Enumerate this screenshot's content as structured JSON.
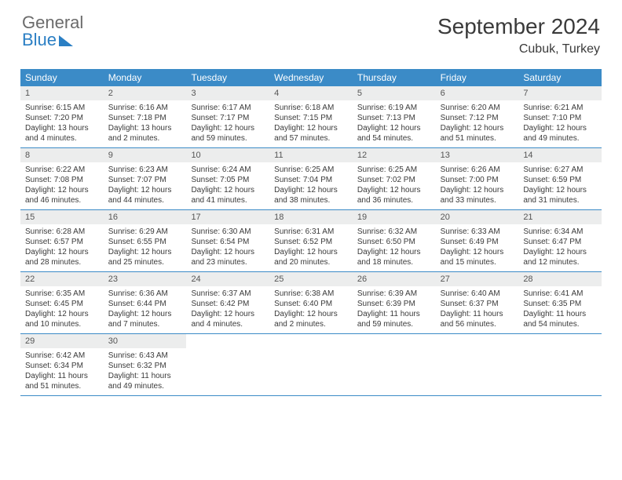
{
  "logo": {
    "line1": "General",
    "line2": "Blue"
  },
  "title": "September 2024",
  "location": "Cubuk, Turkey",
  "colors": {
    "header_bg": "#3b8bc7",
    "header_text": "#ffffff",
    "daynum_bg": "#eceded",
    "text": "#3a3a3a",
    "logo_gray": "#6b6b6b",
    "logo_blue": "#2b7fc4",
    "border": "#3b8bc7"
  },
  "dayNames": [
    "Sunday",
    "Monday",
    "Tuesday",
    "Wednesday",
    "Thursday",
    "Friday",
    "Saturday"
  ],
  "weeks": [
    [
      {
        "n": "1",
        "sr": "Sunrise: 6:15 AM",
        "ss": "Sunset: 7:20 PM",
        "d1": "Daylight: 13 hours",
        "d2": "and 4 minutes."
      },
      {
        "n": "2",
        "sr": "Sunrise: 6:16 AM",
        "ss": "Sunset: 7:18 PM",
        "d1": "Daylight: 13 hours",
        "d2": "and 2 minutes."
      },
      {
        "n": "3",
        "sr": "Sunrise: 6:17 AM",
        "ss": "Sunset: 7:17 PM",
        "d1": "Daylight: 12 hours",
        "d2": "and 59 minutes."
      },
      {
        "n": "4",
        "sr": "Sunrise: 6:18 AM",
        "ss": "Sunset: 7:15 PM",
        "d1": "Daylight: 12 hours",
        "d2": "and 57 minutes."
      },
      {
        "n": "5",
        "sr": "Sunrise: 6:19 AM",
        "ss": "Sunset: 7:13 PM",
        "d1": "Daylight: 12 hours",
        "d2": "and 54 minutes."
      },
      {
        "n": "6",
        "sr": "Sunrise: 6:20 AM",
        "ss": "Sunset: 7:12 PM",
        "d1": "Daylight: 12 hours",
        "d2": "and 51 minutes."
      },
      {
        "n": "7",
        "sr": "Sunrise: 6:21 AM",
        "ss": "Sunset: 7:10 PM",
        "d1": "Daylight: 12 hours",
        "d2": "and 49 minutes."
      }
    ],
    [
      {
        "n": "8",
        "sr": "Sunrise: 6:22 AM",
        "ss": "Sunset: 7:08 PM",
        "d1": "Daylight: 12 hours",
        "d2": "and 46 minutes."
      },
      {
        "n": "9",
        "sr": "Sunrise: 6:23 AM",
        "ss": "Sunset: 7:07 PM",
        "d1": "Daylight: 12 hours",
        "d2": "and 44 minutes."
      },
      {
        "n": "10",
        "sr": "Sunrise: 6:24 AM",
        "ss": "Sunset: 7:05 PM",
        "d1": "Daylight: 12 hours",
        "d2": "and 41 minutes."
      },
      {
        "n": "11",
        "sr": "Sunrise: 6:25 AM",
        "ss": "Sunset: 7:04 PM",
        "d1": "Daylight: 12 hours",
        "d2": "and 38 minutes."
      },
      {
        "n": "12",
        "sr": "Sunrise: 6:25 AM",
        "ss": "Sunset: 7:02 PM",
        "d1": "Daylight: 12 hours",
        "d2": "and 36 minutes."
      },
      {
        "n": "13",
        "sr": "Sunrise: 6:26 AM",
        "ss": "Sunset: 7:00 PM",
        "d1": "Daylight: 12 hours",
        "d2": "and 33 minutes."
      },
      {
        "n": "14",
        "sr": "Sunrise: 6:27 AM",
        "ss": "Sunset: 6:59 PM",
        "d1": "Daylight: 12 hours",
        "d2": "and 31 minutes."
      }
    ],
    [
      {
        "n": "15",
        "sr": "Sunrise: 6:28 AM",
        "ss": "Sunset: 6:57 PM",
        "d1": "Daylight: 12 hours",
        "d2": "and 28 minutes."
      },
      {
        "n": "16",
        "sr": "Sunrise: 6:29 AM",
        "ss": "Sunset: 6:55 PM",
        "d1": "Daylight: 12 hours",
        "d2": "and 25 minutes."
      },
      {
        "n": "17",
        "sr": "Sunrise: 6:30 AM",
        "ss": "Sunset: 6:54 PM",
        "d1": "Daylight: 12 hours",
        "d2": "and 23 minutes."
      },
      {
        "n": "18",
        "sr": "Sunrise: 6:31 AM",
        "ss": "Sunset: 6:52 PM",
        "d1": "Daylight: 12 hours",
        "d2": "and 20 minutes."
      },
      {
        "n": "19",
        "sr": "Sunrise: 6:32 AM",
        "ss": "Sunset: 6:50 PM",
        "d1": "Daylight: 12 hours",
        "d2": "and 18 minutes."
      },
      {
        "n": "20",
        "sr": "Sunrise: 6:33 AM",
        "ss": "Sunset: 6:49 PM",
        "d1": "Daylight: 12 hours",
        "d2": "and 15 minutes."
      },
      {
        "n": "21",
        "sr": "Sunrise: 6:34 AM",
        "ss": "Sunset: 6:47 PM",
        "d1": "Daylight: 12 hours",
        "d2": "and 12 minutes."
      }
    ],
    [
      {
        "n": "22",
        "sr": "Sunrise: 6:35 AM",
        "ss": "Sunset: 6:45 PM",
        "d1": "Daylight: 12 hours",
        "d2": "and 10 minutes."
      },
      {
        "n": "23",
        "sr": "Sunrise: 6:36 AM",
        "ss": "Sunset: 6:44 PM",
        "d1": "Daylight: 12 hours",
        "d2": "and 7 minutes."
      },
      {
        "n": "24",
        "sr": "Sunrise: 6:37 AM",
        "ss": "Sunset: 6:42 PM",
        "d1": "Daylight: 12 hours",
        "d2": "and 4 minutes."
      },
      {
        "n": "25",
        "sr": "Sunrise: 6:38 AM",
        "ss": "Sunset: 6:40 PM",
        "d1": "Daylight: 12 hours",
        "d2": "and 2 minutes."
      },
      {
        "n": "26",
        "sr": "Sunrise: 6:39 AM",
        "ss": "Sunset: 6:39 PM",
        "d1": "Daylight: 11 hours",
        "d2": "and 59 minutes."
      },
      {
        "n": "27",
        "sr": "Sunrise: 6:40 AM",
        "ss": "Sunset: 6:37 PM",
        "d1": "Daylight: 11 hours",
        "d2": "and 56 minutes."
      },
      {
        "n": "28",
        "sr": "Sunrise: 6:41 AM",
        "ss": "Sunset: 6:35 PM",
        "d1": "Daylight: 11 hours",
        "d2": "and 54 minutes."
      }
    ],
    [
      {
        "n": "29",
        "sr": "Sunrise: 6:42 AM",
        "ss": "Sunset: 6:34 PM",
        "d1": "Daylight: 11 hours",
        "d2": "and 51 minutes."
      },
      {
        "n": "30",
        "sr": "Sunrise: 6:43 AM",
        "ss": "Sunset: 6:32 PM",
        "d1": "Daylight: 11 hours",
        "d2": "and 49 minutes."
      },
      null,
      null,
      null,
      null,
      null
    ]
  ]
}
